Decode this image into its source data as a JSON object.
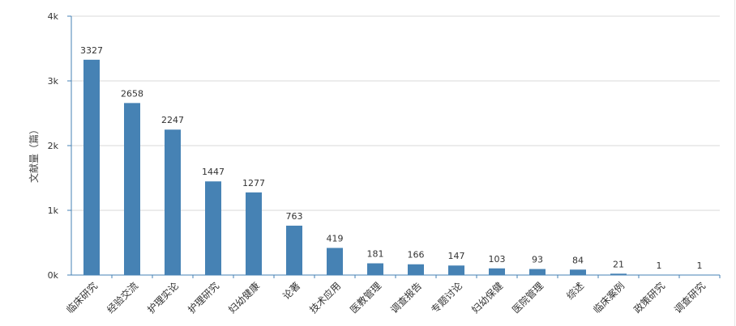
{
  "chart_data": {
    "type": "bar",
    "categories": [
      "临床研究",
      "经验交流",
      "护理实论",
      "护理研究",
      "妇幼健康",
      "论著",
      "技术应用",
      "医教管理",
      "调查报告",
      "专题讨论",
      "妇幼保健",
      "医院管理",
      "综述",
      "临床案例",
      "政策研究",
      "调查研究"
    ],
    "values": [
      3327,
      2658,
      2247,
      1447,
      1277,
      763,
      419,
      181,
      166,
      147,
      103,
      93,
      84,
      21,
      1,
      1
    ],
    "ylabel": "文献量（篇）",
    "ylim": [
      0,
      4000
    ],
    "yticks": [
      "0k",
      "1k",
      "2k",
      "3k",
      "4k"
    ],
    "grid": true,
    "colors": {
      "bar": "#4682b4",
      "grid": "#d9d9d9",
      "axis": "#4682b4",
      "label": "#333333"
    }
  }
}
